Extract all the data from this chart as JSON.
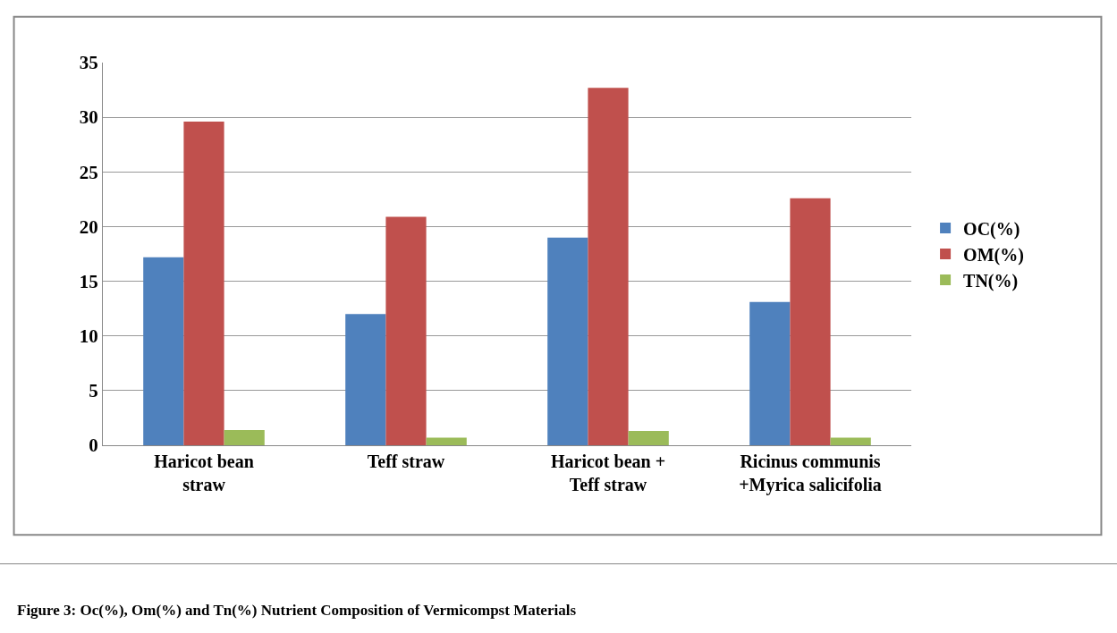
{
  "chart_data": {
    "type": "bar",
    "categories": [
      "Haricot bean\nstraw",
      "Teff straw",
      "Haricot bean +\nTeff straw",
      "Ricinus communis\n+Myrica salicifolia"
    ],
    "series": [
      {
        "name": "OC(%)",
        "color": "#4f81bd",
        "values": [
          17.2,
          12.0,
          19.0,
          13.1
        ]
      },
      {
        "name": "OM(%)",
        "color": "#c0504d",
        "values": [
          29.6,
          20.9,
          32.7,
          22.6
        ]
      },
      {
        "name": "TN(%)",
        "color": "#9bbb59",
        "values": [
          1.4,
          0.7,
          1.3,
          0.7
        ]
      }
    ],
    "ylim": [
      0,
      35
    ],
    "yticks": [
      0,
      5,
      10,
      15,
      20,
      25,
      30,
      35
    ],
    "grid": "y",
    "legend": "right",
    "annotations": [
      "Figure 3: Oc(%), Om(%) and Tn(%) Nutrient Composition of Vermicompst Materials"
    ]
  }
}
